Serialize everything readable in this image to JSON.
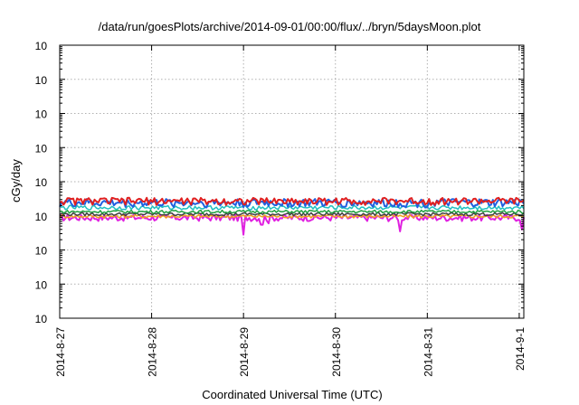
{
  "chart_data": {
    "type": "line",
    "title": "/data/run/goesPlots/archive/2014-09-01/00:00/flux/../bryn/5daysMoon.plot",
    "xlabel": "Coordinated Universal Time (UTC)",
    "ylabel": "cGy/day",
    "yscale": "log",
    "ylim": [
      0.0001,
      10000
    ],
    "xlim": [
      0,
      5.05
    ],
    "grid": true,
    "x_ticks": [
      {
        "value": 0,
        "label": "2014-8-27"
      },
      {
        "value": 1,
        "label": "2014-8-28"
      },
      {
        "value": 2,
        "label": "2014-8-29"
      },
      {
        "value": 3,
        "label": "2014-8-30"
      },
      {
        "value": 4,
        "label": "2014-8-31"
      },
      {
        "value": 5,
        "label": "2014-9-1"
      }
    ],
    "y_ticks": [
      {
        "value": 0.0001,
        "base": "10",
        "exp": "-4"
      },
      {
        "value": 0.001,
        "base": "10",
        "exp": "-3"
      },
      {
        "value": 0.01,
        "base": "10",
        "exp": "-2"
      },
      {
        "value": 0.1,
        "base": "10",
        "exp": "-1"
      },
      {
        "value": 1,
        "base": "10",
        "exp": "0"
      },
      {
        "value": 10,
        "base": "10",
        "exp": "1"
      },
      {
        "value": 100,
        "base": "10",
        "exp": "2"
      },
      {
        "value": 1000,
        "base": "10",
        "exp": "3"
      },
      {
        "value": 10000,
        "base": "10",
        "exp": "4"
      }
    ],
    "series": [
      {
        "color": "#e02020",
        "base": 0.26,
        "amp": 0.17,
        "width": 2
      },
      {
        "color": "#2060e0",
        "base": 0.23,
        "amp": 0.2,
        "width": 2
      },
      {
        "color": "#20c0c0",
        "base": 0.17,
        "amp": 0.1,
        "width": 1.5
      },
      {
        "color": "#20a040",
        "base": 0.13,
        "amp": 0.07,
        "width": 1.5
      },
      {
        "color": "#404040",
        "base": 0.11,
        "amp": 0.07,
        "width": 1.5
      },
      {
        "color": "#f0a020",
        "base": 0.095,
        "amp": 0.08,
        "width": 1.5
      },
      {
        "color": "#e020e0",
        "base": 0.085,
        "amp": 0.15,
        "width": 2
      }
    ],
    "dips": [
      {
        "x": 1.99,
        "value": 0.028
      },
      {
        "x": 2.2,
        "value": 0.055
      },
      {
        "x": 2.27,
        "value": 0.06
      },
      {
        "x": 3.7,
        "value": 0.035
      },
      {
        "x": 5.03,
        "value": 0.04
      }
    ]
  }
}
